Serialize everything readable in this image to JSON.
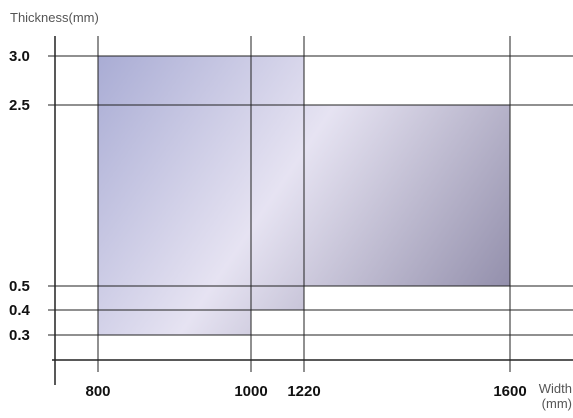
{
  "chart_data": {
    "type": "area",
    "title": "",
    "ylabel": "Thickness(mm)",
    "xlabel_lines": [
      "Width",
      "(mm)"
    ],
    "x_ticks": [
      {
        "value": 800,
        "label": "800"
      },
      {
        "value": 1000,
        "label": "1000"
      },
      {
        "value": 1220,
        "label": "1220"
      },
      {
        "value": 1600,
        "label": "1600"
      }
    ],
    "y_ticks": [
      {
        "value": 3.0,
        "label": "3.0"
      },
      {
        "value": 2.5,
        "label": "2.5"
      },
      {
        "value": 0.5,
        "label": "0.5"
      },
      {
        "value": 0.4,
        "label": "0.4"
      },
      {
        "value": 0.3,
        "label": "0.3"
      }
    ],
    "regions": [
      {
        "name": "",
        "width_range": [
          800,
          1000
        ],
        "thickness_range": [
          0.3,
          3.0
        ]
      },
      {
        "name": "",
        "width_range": [
          1000,
          1220
        ],
        "thickness_range": [
          0.4,
          3.0
        ]
      },
      {
        "name": "",
        "width_range": [
          1220,
          1600
        ],
        "thickness_range": [
          0.5,
          2.5
        ]
      }
    ],
    "grid": true,
    "colors": {
      "gradient_start": "#a9acd4",
      "gradient_mid": "#e6e3f2",
      "gradient_end": "#8a86a4",
      "lines": "#222222"
    }
  }
}
